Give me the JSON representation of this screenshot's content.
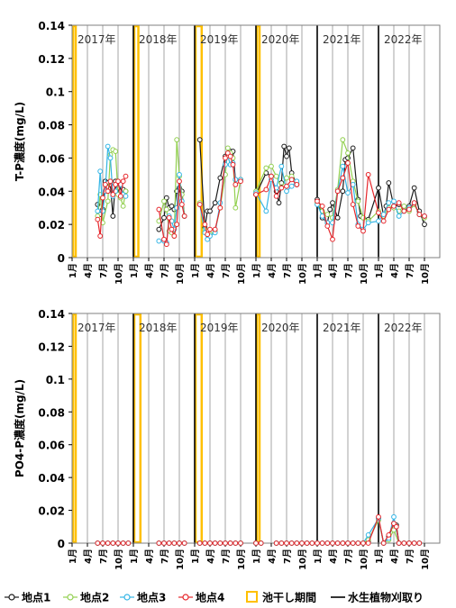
{
  "colors": {
    "site1": "#1a1a1a",
    "site2": "#92d050",
    "site3": "#33b5e5",
    "site4": "#e6262b",
    "dryPeriod": "#ffc000",
    "plantCut": "#000000",
    "grid": "#a6a6a6"
  },
  "legend": {
    "items": [
      {
        "key": "site1",
        "label": "地点1",
        "kind": "marker"
      },
      {
        "key": "site2",
        "label": "地点2",
        "kind": "marker"
      },
      {
        "key": "site3",
        "label": "地点3",
        "kind": "marker"
      },
      {
        "key": "site4",
        "label": "地点4",
        "kind": "marker"
      },
      {
        "key": "dryPeriod",
        "label": "池干し期間",
        "kind": "box"
      },
      {
        "key": "plantCut",
        "label": "水生植物刈取り",
        "kind": "line"
      }
    ]
  },
  "chart_data": [
    {
      "type": "line",
      "ylabel": "T-P濃度(mg/L)",
      "ylim": [
        0,
        0.14
      ],
      "yticks": [
        "0",
        "0.02",
        "0.04",
        "0.06",
        "0.08",
        "0.1",
        "0.12",
        "0.14"
      ],
      "xlim": [
        0,
        72
      ],
      "xtick_labels": [
        "1月",
        "4月",
        "7月",
        "10月",
        "1月",
        "4月",
        "7月",
        "10月",
        "1月",
        "4月",
        "7月",
        "10月",
        "1月",
        "4月",
        "7月",
        "10月",
        "1月",
        "4月",
        "7月",
        "10月",
        "1月",
        "4月",
        "7月",
        "10月"
      ],
      "year_labels": [
        "2017年",
        "2018年",
        "2019年",
        "2020年",
        "2021年",
        "2022年"
      ],
      "dry_periods": [
        [
          0,
          0.4
        ],
        [
          12,
          12.8
        ],
        [
          24,
          25.2
        ],
        [
          36,
          36.4
        ]
      ],
      "plant_cut_months": [
        12,
        24,
        36,
        48,
        60
      ],
      "series": [
        {
          "name": "地点1",
          "key": "site1",
          "x": [
            5,
            5.5,
            6,
            6.5,
            7,
            7.5,
            8,
            8.5,
            9,
            9.5,
            10,
            10.5,
            17,
            18,
            18.5,
            19,
            19.5,
            20,
            20.5,
            21,
            21.5,
            22,
            25,
            26,
            26.5,
            27,
            28,
            29,
            30,
            30.5,
            31,
            31.5,
            32,
            33,
            36,
            38,
            39,
            40,
            40.5,
            41,
            41.5,
            42,
            42.5,
            43,
            44,
            48,
            49,
            50,
            50.5,
            51,
            52,
            53,
            53.5,
            54,
            55,
            56,
            56.5,
            57,
            58,
            60,
            61,
            61.5,
            62,
            63,
            64,
            65,
            66,
            67,
            68,
            69
          ],
          "y": [
            0.032,
            0.026,
            0.029,
            0.046,
            0.045,
            0.044,
            0.025,
            0.046,
            0.042,
            0.04,
            0.041,
            0.04,
            0.017,
            0.024,
            0.036,
            0.03,
            0.031,
            0.029,
            0.04,
            0.042,
            0.04,
            0.025,
            0.071,
            0.018,
            0.028,
            0.028,
            0.033,
            0.048,
            0.061,
            0.062,
            0.064,
            0.064,
            0.047,
            0.047,
            0.038,
            0.051,
            0.049,
            0.04,
            0.033,
            0.045,
            0.067,
            0.061,
            0.066,
            0.051,
            0.044,
            0.035,
            0.024,
            0.021,
            0.029,
            0.033,
            0.024,
            0.04,
            0.059,
            0.06,
            0.066,
            0.035,
            0.025,
            0.024,
            0.023,
            0.042,
            0.025,
            0.031,
            0.045,
            0.031,
            0.032,
            0.03,
            0.031,
            0.042,
            0.028,
            0.02
          ]
        },
        {
          "name": "地点2",
          "key": "site2",
          "x": [
            5,
            5.5,
            6,
            7,
            7.5,
            8,
            8.5,
            9,
            9.5,
            10,
            10.5,
            17,
            18,
            18.5,
            19,
            19.5,
            20,
            20.5,
            21,
            21.5,
            22,
            25,
            26,
            26.5,
            27,
            28,
            29,
            30,
            30.5,
            31,
            31.5,
            32,
            33,
            36,
            38,
            39,
            40,
            41,
            42,
            43,
            44,
            48,
            49,
            50,
            51,
            52,
            53,
            54,
            55,
            56,
            57,
            58,
            60,
            61,
            62,
            63,
            64,
            65,
            66,
            67,
            68,
            69
          ],
          "y": [
            0.025,
            0.038,
            0.021,
            0.034,
            0.062,
            0.065,
            0.064,
            0.038,
            0.036,
            0.031,
            0.04,
            0.022,
            0.034,
            0.029,
            0.016,
            0.015,
            0.013,
            0.071,
            0.049,
            0.038,
            0.025,
            0.033,
            0.017,
            0.016,
            0.014,
            0.016,
            0.03,
            0.05,
            0.066,
            0.063,
            0.06,
            0.03,
            0.047,
            0.04,
            0.054,
            0.055,
            0.049,
            0.042,
            0.048,
            0.049,
            0.045,
            0.033,
            0.028,
            0.026,
            0.024,
            0.041,
            0.071,
            0.063,
            0.046,
            0.034,
            0.024,
            0.022,
            0.028,
            0.025,
            0.03,
            0.03,
            0.028,
            0.031,
            0.028,
            0.032,
            0.026,
            0.024
          ]
        },
        {
          "name": "地点3",
          "key": "site3",
          "x": [
            5,
            5.5,
            6,
            6.5,
            7,
            7.5,
            8,
            8.5,
            9,
            9.5,
            10,
            10.5,
            17,
            18,
            18.5,
            19,
            19.5,
            20,
            20.5,
            21,
            21.5,
            22,
            25,
            26,
            26.5,
            27,
            28,
            29,
            30,
            30.5,
            31,
            31.5,
            32,
            33,
            36,
            38,
            39,
            40,
            41,
            42,
            43,
            44,
            48,
            49,
            50,
            51,
            52,
            53,
            54,
            55,
            56,
            57,
            58,
            60,
            61,
            62,
            63,
            64,
            65,
            66,
            67,
            68,
            69
          ],
          "y": [
            0.028,
            0.052,
            0.028,
            0.04,
            0.067,
            0.06,
            0.037,
            0.04,
            0.045,
            0.044,
            0.038,
            0.037,
            0.01,
            0.01,
            0.009,
            0.025,
            0.022,
            0.017,
            0.03,
            0.05,
            0.034,
            0.025,
            0.032,
            0.015,
            0.011,
            0.013,
            0.015,
            0.033,
            0.056,
            0.061,
            0.056,
            0.057,
            0.047,
            0.047,
            0.039,
            0.028,
            0.047,
            0.042,
            0.055,
            0.04,
            0.043,
            0.046,
            0.032,
            0.025,
            0.021,
            0.021,
            0.04,
            0.055,
            0.039,
            0.044,
            0.02,
            0.017,
            0.021,
            0.022,
            0.026,
            0.033,
            0.034,
            0.025,
            0.028,
            0.03,
            0.033,
            0.026,
            0.025
          ]
        },
        {
          "name": "地点4",
          "key": "site4",
          "x": [
            5,
            5.5,
            6,
            6.5,
            7,
            7.5,
            8,
            8.5,
            9,
            9.5,
            10,
            10.5,
            17,
            18,
            18.5,
            19,
            19.5,
            20,
            20.5,
            21,
            21.5,
            22,
            25,
            26,
            26.5,
            27,
            28,
            29,
            30,
            30.5,
            31,
            31.5,
            32,
            33,
            36,
            38,
            39,
            40,
            41,
            42,
            43,
            44,
            48,
            49,
            50,
            51,
            52,
            53,
            54,
            55,
            56,
            57,
            58,
            60,
            61,
            62,
            63,
            64,
            65,
            66,
            67,
            68,
            69
          ],
          "y": [
            0.023,
            0.013,
            0.036,
            0.044,
            0.04,
            0.046,
            0.038,
            0.044,
            0.046,
            0.037,
            0.046,
            0.049,
            0.029,
            0.011,
            0.008,
            0.024,
            0.017,
            0.013,
            0.02,
            0.046,
            0.032,
            0.025,
            0.032,
            0.02,
            0.014,
            0.017,
            0.017,
            0.03,
            0.06,
            0.063,
            0.061,
            0.056,
            0.044,
            0.046,
            0.038,
            0.041,
            0.049,
            0.037,
            0.042,
            0.043,
            0.047,
            0.044,
            0.034,
            0.031,
            0.019,
            0.011,
            0.04,
            0.048,
            0.057,
            0.032,
            0.019,
            0.016,
            0.05,
            0.027,
            0.022,
            0.029,
            0.031,
            0.033,
            0.028,
            0.029,
            0.033,
            0.026,
            0.025
          ]
        }
      ]
    },
    {
      "type": "line",
      "ylabel": "PO4-P濃度(mg/L)",
      "ylim": [
        0,
        0.14
      ],
      "yticks": [
        "0",
        "0.02",
        "0.04",
        "0.06",
        "0.08",
        "0.1",
        "0.12",
        "0.14"
      ],
      "xlim": [
        0,
        72
      ],
      "xtick_labels": [
        "1月",
        "4月",
        "7月",
        "10月",
        "1月",
        "4月",
        "7月",
        "10月",
        "1月",
        "4月",
        "7月",
        "10月",
        "1月",
        "4月",
        "7月",
        "10月",
        "1月",
        "4月",
        "7月",
        "10月",
        "1月",
        "4月",
        "7月",
        "10月"
      ],
      "year_labels": [
        "2017年",
        "2018年",
        "2019年",
        "2020年",
        "2021年",
        "2022年"
      ],
      "dry_periods": [
        [
          0,
          0.4
        ],
        [
          12,
          13.2
        ],
        [
          24,
          25.2
        ],
        [
          36,
          36.4
        ]
      ],
      "plant_cut_months": [
        12,
        24,
        36,
        48,
        60
      ],
      "series": [
        {
          "name": "地点1",
          "key": "site1",
          "x": [
            5,
            6,
            7,
            8,
            9,
            10,
            11,
            17,
            18,
            19,
            20,
            21,
            22,
            25,
            26,
            27,
            28,
            29,
            30,
            31,
            32,
            33,
            36,
            37,
            40,
            41,
            42,
            43,
            44,
            45,
            46,
            47,
            48,
            49,
            50,
            51,
            52,
            53,
            54,
            55,
            56,
            57,
            58,
            60,
            61,
            62,
            63,
            63.5,
            64,
            65,
            66,
            67,
            68
          ],
          "y": [
            0,
            0,
            0,
            0,
            0,
            0,
            0,
            0,
            0,
            0,
            0,
            0,
            0,
            0,
            0,
            0,
            0,
            0,
            0,
            0,
            0,
            0,
            0,
            0,
            0,
            0,
            0,
            0,
            0,
            0,
            0,
            0,
            0,
            0,
            0,
            0,
            0,
            0,
            0,
            0,
            0,
            0,
            0.001,
            0.015,
            0,
            0.004,
            0.012,
            0.011,
            0,
            0,
            0,
            0,
            0
          ]
        },
        {
          "name": "地点2",
          "key": "site2",
          "x": [
            5,
            6,
            7,
            8,
            9,
            10,
            11,
            17,
            18,
            19,
            20,
            21,
            22,
            25,
            26,
            27,
            28,
            29,
            30,
            31,
            32,
            33,
            36,
            37,
            40,
            41,
            42,
            43,
            44,
            45,
            46,
            47,
            48,
            49,
            50,
            51,
            52,
            53,
            54,
            55,
            56,
            57,
            58,
            60,
            61,
            62,
            63,
            64,
            65,
            66,
            67,
            68
          ],
          "y": [
            0,
            0,
            0,
            0,
            0,
            0,
            0,
            0,
            0,
            0,
            0,
            0,
            0,
            0,
            0,
            0,
            0,
            0,
            0,
            0,
            0,
            0,
            0,
            0,
            0,
            0,
            0,
            0,
            0,
            0,
            0,
            0,
            0,
            0,
            0,
            0,
            0,
            0,
            0,
            0,
            0,
            0,
            0.002,
            0.014,
            0,
            0.002,
            0.008,
            0,
            0,
            0,
            0,
            0
          ]
        },
        {
          "name": "地点3",
          "key": "site3",
          "x": [
            5,
            6,
            7,
            8,
            9,
            10,
            11,
            17,
            18,
            19,
            20,
            21,
            22,
            25,
            26,
            27,
            28,
            29,
            30,
            31,
            32,
            33,
            36,
            37,
            40,
            41,
            42,
            43,
            44,
            45,
            46,
            47,
            48,
            49,
            50,
            51,
            52,
            53,
            54,
            55,
            56,
            57,
            58,
            60,
            61,
            62,
            63,
            64,
            65,
            66,
            67,
            68
          ],
          "y": [
            0,
            0,
            0,
            0,
            0,
            0,
            0,
            0,
            0,
            0,
            0,
            0,
            0,
            0,
            0,
            0,
            0,
            0,
            0,
            0,
            0,
            0,
            0,
            0,
            0,
            0,
            0,
            0,
            0,
            0,
            0,
            0,
            0,
            0,
            0,
            0,
            0,
            0,
            0,
            0,
            0,
            0,
            0.005,
            0.015,
            0,
            0.003,
            0.016,
            0,
            0,
            0,
            0,
            0
          ]
        },
        {
          "name": "地点4",
          "key": "site4",
          "x": [
            5,
            6,
            7,
            8,
            9,
            10,
            11,
            17,
            18,
            19,
            20,
            21,
            22,
            25,
            26,
            27,
            28,
            29,
            30,
            31,
            32,
            33,
            36,
            37,
            40,
            41,
            42,
            43,
            44,
            45,
            46,
            47,
            48,
            49,
            50,
            51,
            52,
            53,
            54,
            55,
            56,
            57,
            58,
            60,
            61,
            62,
            63,
            63.5,
            64,
            65,
            66,
            67,
            68
          ],
          "y": [
            0,
            0,
            0,
            0,
            0,
            0,
            0,
            0,
            0,
            0,
            0,
            0,
            0,
            0,
            0,
            0,
            0,
            0,
            0,
            0,
            0,
            0,
            0,
            0,
            0,
            0,
            0,
            0,
            0,
            0,
            0,
            0,
            0,
            0,
            0,
            0,
            0,
            0,
            0,
            0,
            0,
            0,
            0,
            0.016,
            0,
            0.005,
            0.012,
            0.01,
            0,
            0,
            0,
            0,
            0
          ]
        }
      ]
    }
  ]
}
